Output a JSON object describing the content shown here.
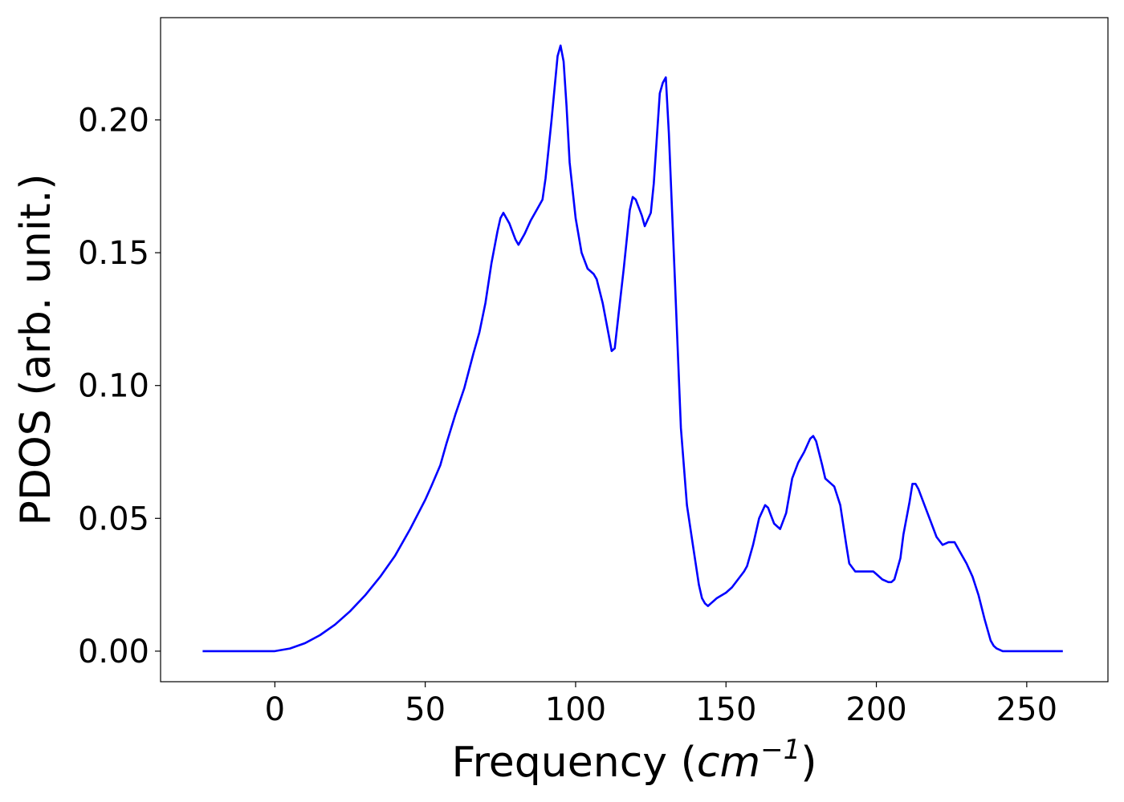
{
  "chart_data": {
    "type": "line",
    "xlabel": "Frequency (",
    "xlabel_unit": "cm",
    "xlabel_exponent": "−1",
    "xlabel_close": ")",
    "ylabel": "PDOS (arb. unit.)",
    "xlim": [
      -38,
      277
    ],
    "ylim": [
      -0.0115,
      0.2385
    ],
    "xticks": [
      0,
      50,
      100,
      150,
      200,
      250
    ],
    "xtick_labels": [
      "0",
      "50",
      "100",
      "150",
      "200",
      "250"
    ],
    "yticks": [
      0.0,
      0.05,
      0.1,
      0.15,
      0.2
    ],
    "ytick_labels": [
      "0.00",
      "0.05",
      "0.10",
      "0.15",
      "0.20"
    ],
    "grid": false,
    "line_color": "#0000ff",
    "series": [
      {
        "x": [
          -24,
          0,
          5,
          10,
          15,
          20,
          25,
          30,
          35,
          40,
          45,
          50,
          52,
          55,
          57,
          60,
          63,
          66,
          68,
          70,
          72,
          74,
          75,
          76,
          78,
          80,
          81,
          83,
          85,
          87,
          89,
          90,
          92,
          94,
          95,
          96,
          97,
          98,
          100,
          102,
          104,
          106,
          107,
          109,
          111,
          112,
          113,
          114,
          116,
          118,
          119,
          120,
          122,
          123,
          125,
          126,
          128,
          129,
          130,
          131,
          133,
          135,
          137,
          139,
          141,
          142,
          143,
          144,
          145,
          147,
          150,
          152,
          154,
          156,
          157,
          159,
          161,
          163,
          164,
          165,
          166,
          168,
          170,
          172,
          174,
          176,
          178,
          179,
          180,
          182,
          183,
          185,
          186,
          188,
          190,
          191,
          193,
          195,
          197,
          199,
          200,
          202,
          204,
          205,
          206,
          208,
          209,
          211,
          212,
          213,
          214,
          216,
          218,
          220,
          222,
          224,
          225,
          226,
          228,
          230,
          232,
          234,
          236,
          238,
          239,
          240,
          242,
          245,
          262
        ],
        "y": [
          0.0,
          0.0,
          0.001,
          0.003,
          0.006,
          0.01,
          0.015,
          0.021,
          0.028,
          0.036,
          0.046,
          0.057,
          0.062,
          0.07,
          0.078,
          0.089,
          0.099,
          0.112,
          0.12,
          0.131,
          0.146,
          0.158,
          0.163,
          0.165,
          0.161,
          0.155,
          0.153,
          0.157,
          0.162,
          0.166,
          0.17,
          0.178,
          0.2,
          0.224,
          0.228,
          0.222,
          0.205,
          0.184,
          0.163,
          0.15,
          0.144,
          0.142,
          0.14,
          0.131,
          0.119,
          0.113,
          0.114,
          0.124,
          0.144,
          0.166,
          0.171,
          0.17,
          0.164,
          0.16,
          0.165,
          0.176,
          0.21,
          0.214,
          0.216,
          0.195,
          0.14,
          0.084,
          0.055,
          0.04,
          0.025,
          0.02,
          0.018,
          0.017,
          0.018,
          0.02,
          0.022,
          0.024,
          0.027,
          0.03,
          0.032,
          0.04,
          0.05,
          0.055,
          0.054,
          0.051,
          0.048,
          0.046,
          0.052,
          0.065,
          0.071,
          0.075,
          0.08,
          0.081,
          0.079,
          0.07,
          0.065,
          0.063,
          0.062,
          0.055,
          0.04,
          0.033,
          0.03,
          0.03,
          0.03,
          0.03,
          0.029,
          0.027,
          0.026,
          0.026,
          0.027,
          0.035,
          0.044,
          0.056,
          0.063,
          0.063,
          0.061,
          0.055,
          0.049,
          0.043,
          0.04,
          0.041,
          0.041,
          0.041,
          0.037,
          0.033,
          0.028,
          0.021,
          0.012,
          0.004,
          0.002,
          0.001,
          0.0,
          0.0,
          0.0
        ]
      }
    ]
  }
}
